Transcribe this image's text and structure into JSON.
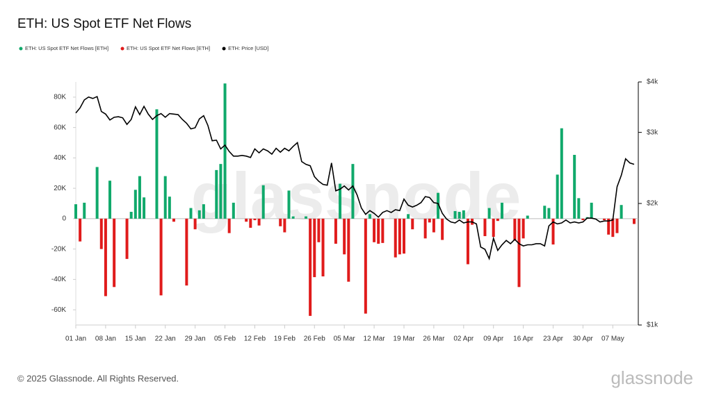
{
  "chart_data": {
    "type": "bar_line",
    "title": "ETH: US Spot ETF Net Flows",
    "watermark": "glassnode",
    "categories": [
      "01 Jan",
      null,
      null,
      null,
      null,
      null,
      null,
      "08 Jan",
      null,
      null,
      null,
      null,
      null,
      null,
      "15 Jan",
      null,
      null,
      null,
      null,
      null,
      null,
      "22 Jan",
      null,
      null,
      null,
      null,
      null,
      null,
      "29 Jan",
      null,
      null,
      null,
      null,
      null,
      null,
      "05 Feb",
      null,
      null,
      null,
      null,
      null,
      null,
      "12 Feb",
      null,
      null,
      null,
      null,
      null,
      null,
      "19 Feb",
      null,
      null,
      null,
      null,
      null,
      null,
      "26 Feb",
      null,
      null,
      null,
      null,
      null,
      null,
      "05 Mar",
      null,
      null,
      null,
      null,
      null,
      null,
      "12 Mar",
      null,
      null,
      null,
      null,
      null,
      null,
      "19 Mar",
      null,
      null,
      null,
      null,
      null,
      null,
      "26 Mar",
      null,
      null,
      null,
      null,
      null,
      null,
      "02 Apr",
      null,
      null,
      null,
      null,
      null,
      null,
      "09 Apr",
      null,
      null,
      null,
      null,
      null,
      null,
      "16 Apr",
      null,
      null,
      null,
      null,
      null,
      null,
      "23 Apr",
      null,
      null,
      null,
      null,
      null,
      null,
      "30 Apr",
      null,
      null,
      null,
      null,
      null,
      null,
      "07 May",
      null,
      null,
      null,
      null,
      null
    ],
    "series": [
      {
        "name": "ETH: US Spot ETF Net Flows [ETH]",
        "color": "#10a96b",
        "values": [
          9500,
          null,
          10500,
          null,
          null,
          34000,
          null,
          null,
          25000,
          null,
          null,
          null,
          null,
          4500,
          19000,
          28000,
          14000,
          null,
          null,
          72000,
          null,
          28000,
          14500,
          null,
          null,
          null,
          null,
          7000,
          null,
          5500,
          9500,
          null,
          null,
          32000,
          36000,
          89000,
          null,
          10500,
          null,
          null,
          null,
          null,
          null,
          null,
          22000,
          null,
          null,
          null,
          null,
          null,
          18500,
          1500,
          null,
          null,
          1500,
          null,
          null,
          null,
          null,
          null,
          null,
          null,
          23000,
          null,
          null,
          36000,
          null,
          null,
          null,
          3000,
          null,
          null,
          null,
          null,
          null,
          null,
          null,
          null,
          3000,
          null,
          null,
          null,
          null,
          null,
          null,
          17000,
          null,
          null,
          null,
          5000,
          4500,
          5500,
          null,
          null,
          null,
          null,
          null,
          7000,
          null,
          null,
          10500,
          null,
          null,
          null,
          null,
          null,
          2000,
          null,
          null,
          null,
          8500,
          7000,
          null,
          29000,
          59500,
          null,
          null,
          42000,
          13500,
          null,
          1000,
          10500,
          null,
          null,
          null,
          null,
          null,
          null,
          9000,
          null,
          null,
          null
        ]
      },
      {
        "name": "ETH: US Spot ETF Net Flows [ETH]",
        "color": "#e01b1b",
        "values": [
          null,
          -15000,
          null,
          null,
          null,
          null,
          -20000,
          -51000,
          null,
          -45000,
          null,
          null,
          -26500,
          null,
          null,
          null,
          null,
          null,
          null,
          null,
          -50500,
          null,
          null,
          -2000,
          null,
          null,
          -44000,
          null,
          -7000,
          null,
          null,
          null,
          null,
          null,
          null,
          null,
          -9500,
          null,
          null,
          null,
          -2000,
          -6000,
          -1000,
          -4500,
          null,
          null,
          null,
          null,
          -5000,
          -9000,
          null,
          null,
          null,
          null,
          null,
          -64000,
          -38500,
          -15500,
          -38000,
          null,
          null,
          -16500,
          null,
          -23500,
          -41500,
          null,
          null,
          null,
          -62500,
          null,
          -15500,
          -16500,
          -16000,
          null,
          null,
          -25500,
          -23500,
          -23000,
          null,
          -7000,
          null,
          null,
          -13000,
          -2500,
          -9000,
          null,
          -14000,
          null,
          null,
          null,
          null,
          null,
          -30000,
          -4000,
          null,
          null,
          -11500,
          null,
          -12000,
          -1500,
          null,
          null,
          null,
          -14500,
          -45000,
          -13000,
          null,
          null,
          null,
          null,
          null,
          null,
          -17000,
          null,
          null,
          null,
          null,
          null,
          null,
          -1000,
          null,
          null,
          null,
          null,
          -1000,
          -10500,
          -12000,
          -9500,
          null,
          null,
          null,
          -3500
        ]
      },
      {
        "name": "ETH: Price [USD]",
        "color": "#000000",
        "type": "line",
        "axis": "y2",
        "values": [
          3350,
          3450,
          3610,
          3670,
          3640,
          3680,
          3380,
          3330,
          3220,
          3270,
          3280,
          3260,
          3140,
          3230,
          3470,
          3320,
          3480,
          3330,
          3230,
          3300,
          3340,
          3270,
          3340,
          3330,
          3320,
          3230,
          3160,
          3060,
          3080,
          3240,
          3300,
          3120,
          2860,
          2870,
          2730,
          2790,
          2690,
          2620,
          2620,
          2630,
          2620,
          2600,
          2730,
          2670,
          2730,
          2700,
          2650,
          2740,
          2680,
          2740,
          2700,
          2770,
          2830,
          2540,
          2500,
          2480,
          2330,
          2270,
          2230,
          2220,
          2520,
          2150,
          2170,
          2210,
          2160,
          2210,
          2100,
          1950,
          1880,
          1920,
          1890,
          1850,
          1900,
          1920,
          1900,
          1930,
          1920,
          2050,
          1980,
          1960,
          1980,
          2010,
          2080,
          2070,
          2010,
          2000,
          1890,
          1830,
          1800,
          1790,
          1820,
          1790,
          1800,
          1800,
          1780,
          1560,
          1540,
          1460,
          1640,
          1530,
          1580,
          1620,
          1590,
          1630,
          1590,
          1570,
          1580,
          1580,
          1590,
          1590,
          1570,
          1760,
          1800,
          1780,
          1790,
          1820,
          1790,
          1800,
          1790,
          1800,
          1840,
          1840,
          1830,
          1800,
          1810,
          1810,
          1820,
          2200,
          2350,
          2580,
          2520,
          2500
        ]
      }
    ],
    "ylim": [
      -70000,
      90000
    ],
    "yticks": [
      {
        "value": -60000,
        "label": "-60K"
      },
      {
        "value": -40000,
        "label": "-40K"
      },
      {
        "value": -20000,
        "label": "-20K"
      },
      0,
      {
        "value": 20000,
        "label": "20K"
      },
      {
        "value": 40000,
        "label": "40K"
      },
      {
        "value": 60000,
        "label": "60K"
      },
      {
        "value": 80000,
        "label": "80K"
      }
    ],
    "y2lim": [
      1000,
      4000
    ],
    "y2log": true,
    "y2ticks": [
      {
        "value": 1000,
        "label": "$1k"
      },
      {
        "value": 2000,
        "label": "$2k"
      },
      {
        "value": 3000,
        "label": "$3k"
      },
      {
        "value": 4000,
        "label": "$4k"
      }
    ],
    "grid": false
  },
  "footer": {
    "copyright": "© 2025 Glassnode. All Rights Reserved.",
    "logo": "glassnode"
  }
}
